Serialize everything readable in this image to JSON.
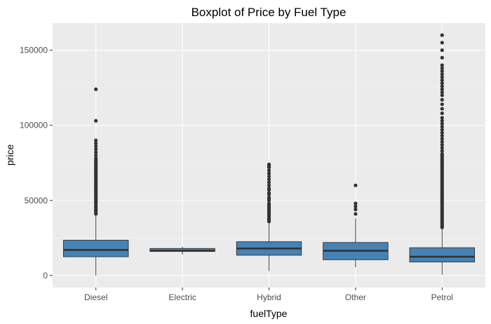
{
  "chart_data": {
    "type": "boxplot",
    "title": "Boxplot of Price by Fuel Type",
    "xlabel": "fuelType",
    "ylabel": "price",
    "ylim": [
      -8000,
      168000
    ],
    "yticks": [
      0,
      50000,
      100000,
      150000
    ],
    "ytick_labels": [
      "0",
      "50000",
      "100000",
      "150000"
    ],
    "grid": true,
    "fill_color": "#4682b4",
    "panel_color": "#ebebeb",
    "categories": [
      "Diesel",
      "Electric",
      "Hybrid",
      "Other",
      "Petrol"
    ],
    "boxes": [
      {
        "category": "Diesel",
        "whisker_low": 0,
        "q1": 12500,
        "median": 17000,
        "q3": 23500,
        "whisker_high": 40000,
        "outliers": [
          41000,
          42000,
          43000,
          44000,
          45000,
          46000,
          47000,
          48000,
          49000,
          50000,
          51000,
          52000,
          53000,
          54000,
          55000,
          56000,
          57000,
          58000,
          59000,
          60000,
          61000,
          62000,
          63000,
          64000,
          65000,
          66000,
          67000,
          68000,
          69000,
          70000,
          71000,
          72000,
          73000,
          74000,
          75000,
          76000,
          77000,
          78000,
          80000,
          82000,
          84000,
          86000,
          88000,
          90000,
          103000,
          124000
        ]
      },
      {
        "category": "Electric",
        "whisker_low": 14000,
        "q1": 16000,
        "median": 16500,
        "q3": 18000,
        "whisker_high": 19000,
        "outliers": []
      },
      {
        "category": "Hybrid",
        "whisker_low": 3000,
        "q1": 13500,
        "median": 18000,
        "q3": 22500,
        "whisker_high": 35000,
        "outliers": [
          36000,
          37000,
          38000,
          39000,
          40000,
          41000,
          42000,
          43000,
          44000,
          45000,
          46000,
          47000,
          48000,
          50000,
          51000,
          52000,
          54000,
          55000,
          57000,
          58000,
          60000,
          62000,
          64000,
          66000,
          68000,
          70000,
          72000,
          73000,
          74000
        ]
      },
      {
        "category": "Other",
        "whisker_low": 5500,
        "q1": 10500,
        "median": 16500,
        "q3": 22000,
        "whisker_high": 38000,
        "outliers": [
          41000,
          44000,
          46000,
          48000,
          60000
        ]
      },
      {
        "category": "Petrol",
        "whisker_low": 500,
        "q1": 9000,
        "median": 12500,
        "q3": 18500,
        "whisker_high": 31500,
        "outliers": [
          32000,
          33000,
          34000,
          35000,
          36000,
          37000,
          38000,
          39000,
          40000,
          41000,
          42000,
          43000,
          44000,
          45000,
          46000,
          47000,
          48000,
          49000,
          50000,
          51000,
          52000,
          53000,
          54000,
          55000,
          56000,
          57000,
          58000,
          59000,
          60000,
          61000,
          62000,
          63000,
          64000,
          65000,
          66000,
          67000,
          68000,
          69000,
          70000,
          71000,
          72000,
          73000,
          74000,
          75000,
          76000,
          77000,
          78000,
          79000,
          80000,
          81000,
          83000,
          85000,
          87000,
          89000,
          91000,
          93000,
          95000,
          97000,
          99000,
          101000,
          103000,
          105000,
          108000,
          111000,
          114000,
          117000,
          120000,
          122000,
          124000,
          126000,
          128000,
          130000,
          132000,
          134000,
          136000,
          138000,
          140000,
          145000,
          150000,
          155000,
          160000
        ]
      }
    ]
  }
}
